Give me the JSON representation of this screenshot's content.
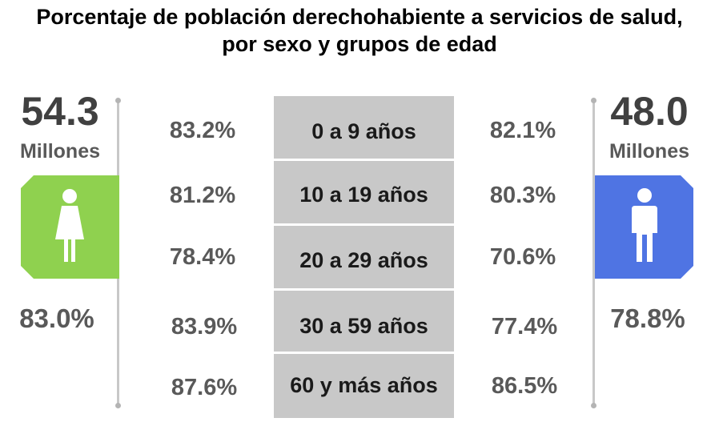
{
  "chart_data": {
    "type": "table",
    "title_lines": [
      "Porcentaje de población derechohabiente a servicios de salud,",
      "por sexo y grupos de edad"
    ],
    "age_groups": [
      "0 a 9 años",
      "10 a 19 años",
      "20 a 29 años",
      "30 a 59 años",
      "60 y más años"
    ],
    "series": [
      {
        "side": "left",
        "icon": "female-figure-icon",
        "color": "#8fd14f",
        "population": "54.3",
        "population_unit": "Millones",
        "total": "83.0%",
        "values": [
          83.2,
          81.2,
          78.4,
          83.9,
          87.6
        ],
        "labels": [
          "83.2%",
          "81.2%",
          "78.4%",
          "83.9%",
          "87.6%"
        ]
      },
      {
        "side": "right",
        "icon": "male-figure-icon",
        "color": "#4f74e3",
        "population": "48.0",
        "population_unit": "Millones",
        "total": "78.8%",
        "values": [
          82.1,
          80.3,
          70.6,
          77.4,
          86.5
        ],
        "labels": [
          "82.1%",
          "80.3%",
          "70.6%",
          "77.4%",
          "86.5%"
        ]
      }
    ]
  }
}
